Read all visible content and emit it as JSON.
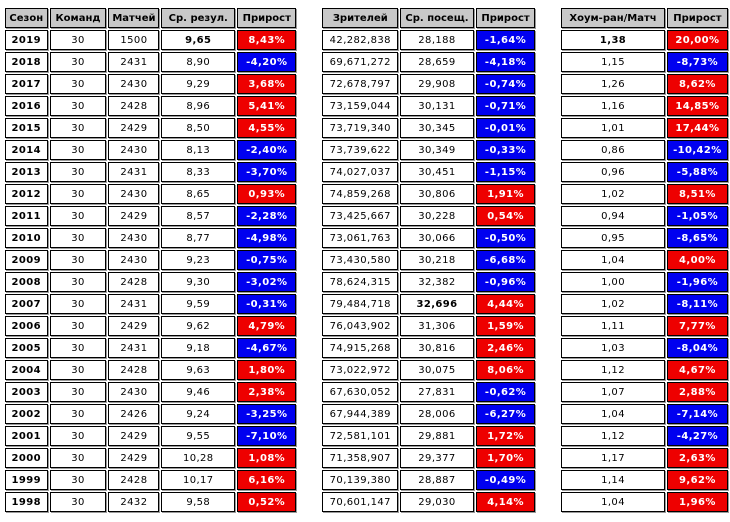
{
  "colors": {
    "up": "#ee0000",
    "down": "#0000f0",
    "highlight": "#dcf2dc",
    "header_bg": "#c8c8c8"
  },
  "tables": {
    "season": {
      "headers": [
        "Сезон",
        "Команд",
        "Матчей",
        "Ср. резул.",
        "Прирост"
      ],
      "rows": [
        {
          "year": "2019",
          "teams": "30",
          "games": "1500",
          "avg": "9,65",
          "avg_bold": true,
          "growth": "8,43%",
          "trend": "up"
        },
        {
          "year": "2018",
          "teams": "30",
          "games": "2431",
          "avg": "8,90",
          "growth": "-4,20%",
          "trend": "down"
        },
        {
          "year": "2017",
          "teams": "30",
          "games": "2430",
          "avg": "9,29",
          "growth": "3,68%",
          "trend": "up"
        },
        {
          "year": "2016",
          "teams": "30",
          "games": "2428",
          "avg": "8,96",
          "growth": "5,41%",
          "trend": "up"
        },
        {
          "year": "2015",
          "teams": "30",
          "games": "2429",
          "avg": "8,50",
          "growth": "4,55%",
          "trend": "up"
        },
        {
          "year": "2014",
          "teams": "30",
          "games": "2430",
          "avg": "8,13",
          "growth": "-2,40%",
          "trend": "down"
        },
        {
          "year": "2013",
          "teams": "30",
          "games": "2431",
          "avg": "8,33",
          "growth": "-3,70%",
          "trend": "down"
        },
        {
          "year": "2012",
          "teams": "30",
          "games": "2430",
          "avg": "8,65",
          "growth": "0,93%",
          "trend": "up"
        },
        {
          "year": "2011",
          "teams": "30",
          "games": "2429",
          "avg": "8,57",
          "growth": "-2,28%",
          "trend": "down"
        },
        {
          "year": "2010",
          "teams": "30",
          "games": "2430",
          "avg": "8,77",
          "growth": "-4,98%",
          "trend": "down"
        },
        {
          "year": "2009",
          "teams": "30",
          "games": "2430",
          "avg": "9,23",
          "growth": "-0,75%",
          "trend": "down"
        },
        {
          "year": "2008",
          "teams": "30",
          "games": "2428",
          "avg": "9,30",
          "growth": "-3,02%",
          "trend": "down"
        },
        {
          "year": "2007",
          "teams": "30",
          "games": "2431",
          "avg": "9,59",
          "growth": "-0,31%",
          "trend": "down"
        },
        {
          "year": "2006",
          "teams": "30",
          "games": "2429",
          "avg": "9,62",
          "growth": "4,79%",
          "trend": "up"
        },
        {
          "year": "2005",
          "teams": "30",
          "games": "2431",
          "avg": "9,18",
          "growth": "-4,67%",
          "trend": "down"
        },
        {
          "year": "2004",
          "teams": "30",
          "games": "2428",
          "avg": "9,63",
          "growth": "1,80%",
          "trend": "up"
        },
        {
          "year": "2003",
          "teams": "30",
          "games": "2430",
          "avg": "9,46",
          "growth": "2,38%",
          "trend": "up"
        },
        {
          "year": "2002",
          "teams": "30",
          "games": "2426",
          "avg": "9,24",
          "growth": "-3,25%",
          "trend": "down"
        },
        {
          "year": "2001",
          "teams": "30",
          "games": "2429",
          "avg": "9,55",
          "growth": "-7,10%",
          "trend": "down"
        },
        {
          "year": "2000",
          "teams": "30",
          "games": "2429",
          "avg": "10,28",
          "growth": "1,08%",
          "trend": "up"
        },
        {
          "year": "1999",
          "teams": "30",
          "games": "2428",
          "avg": "10,17",
          "growth": "6,16%",
          "trend": "up"
        },
        {
          "year": "1998",
          "teams": "30",
          "games": "2432",
          "avg": "9,58",
          "growth": "0,52%",
          "trend": "up"
        }
      ]
    },
    "attendance": {
      "headers": [
        "Зрителей",
        "Ср. посещ.",
        "Прирост"
      ],
      "rows": [
        {
          "spectators": "42,282,838",
          "avg": "28,188",
          "growth": "-1,64%",
          "trend": "down"
        },
        {
          "spectators": "69,671,272",
          "avg": "28,659",
          "growth": "-4,18%",
          "trend": "down"
        },
        {
          "spectators": "72,678,797",
          "avg": "29,908",
          "growth": "-0,74%",
          "trend": "down"
        },
        {
          "spectators": "73,159,044",
          "avg": "30,131",
          "growth": "-0,71%",
          "trend": "down"
        },
        {
          "spectators": "73,719,340",
          "avg": "30,345",
          "growth": "-0,01%",
          "trend": "down"
        },
        {
          "spectators": "73,739,622",
          "avg": "30,349",
          "growth": "-0,33%",
          "trend": "down"
        },
        {
          "spectators": "74,027,037",
          "avg": "30,451",
          "growth": "-1,15%",
          "trend": "down"
        },
        {
          "spectators": "74,859,268",
          "avg": "30,806",
          "growth": "1,91%",
          "trend": "up"
        },
        {
          "spectators": "73,425,667",
          "avg": "30,228",
          "growth": "0,54%",
          "trend": "up"
        },
        {
          "spectators": "73,061,763",
          "avg": "30,066",
          "growth": "-0,50%",
          "trend": "down"
        },
        {
          "spectators": "73,430,580",
          "avg": "30,218",
          "growth": "-6,68%",
          "trend": "down"
        },
        {
          "spectators": "78,624,315",
          "avg": "32,382",
          "growth": "-0,96%",
          "trend": "down"
        },
        {
          "spectators": "79,484,718",
          "avg": "32,696",
          "avg_green": true,
          "avg_bold": true,
          "growth": "4,44%",
          "trend": "up"
        },
        {
          "spectators": "76,043,902",
          "avg": "31,306",
          "growth": "1,59%",
          "trend": "up"
        },
        {
          "spectators": "74,915,268",
          "avg": "30,816",
          "avg_green": true,
          "growth": "2,46%",
          "trend": "up"
        },
        {
          "spectators": "73,022,972",
          "avg": "30,075",
          "avg_green": true,
          "growth": "8,06%",
          "trend": "up"
        },
        {
          "spectators": "67,630,052",
          "avg": "27,831",
          "growth": "-0,62%",
          "trend": "down"
        },
        {
          "spectators": "67,944,389",
          "avg": "28,006",
          "growth": "-6,27%",
          "trend": "down"
        },
        {
          "spectators": "72,581,101",
          "avg": "29,881",
          "avg_green": true,
          "growth": "1,72%",
          "trend": "up"
        },
        {
          "spectators": "71,358,907",
          "avg": "29,377",
          "avg_green": true,
          "growth": "1,70%",
          "trend": "up"
        },
        {
          "spectators": "70,139,380",
          "avg": "28,887",
          "growth": "-0,49%",
          "trend": "down"
        },
        {
          "spectators": "70,601,147",
          "avg": "29,030",
          "avg_green": true,
          "growth": "4,14%",
          "trend": "up"
        }
      ]
    },
    "homeruns": {
      "headers": [
        "Хоум-ран/Матч",
        "Прирост"
      ],
      "rows": [
        {
          "hr": "1,38",
          "hr_bold": true,
          "growth": "20,00%",
          "trend": "up"
        },
        {
          "hr": "1,15",
          "growth": "-8,73%",
          "trend": "down"
        },
        {
          "hr": "1,26",
          "growth": "8,62%",
          "trend": "up"
        },
        {
          "hr": "1,16",
          "growth": "14,85%",
          "trend": "up"
        },
        {
          "hr": "1,01",
          "growth": "17,44%",
          "trend": "up"
        },
        {
          "hr": "0,86",
          "growth": "-10,42%",
          "trend": "down"
        },
        {
          "hr": "0,96",
          "growth": "-5,88%",
          "trend": "down"
        },
        {
          "hr": "1,02",
          "growth": "8,51%",
          "trend": "up"
        },
        {
          "hr": "0,94",
          "growth": "-1,05%",
          "trend": "down"
        },
        {
          "hr": "0,95",
          "growth": "-8,65%",
          "trend": "down"
        },
        {
          "hr": "1,04",
          "growth": "4,00%",
          "trend": "up"
        },
        {
          "hr": "1,00",
          "growth": "-1,96%",
          "trend": "down"
        },
        {
          "hr": "1,02",
          "growth": "-8,11%",
          "trend": "down"
        },
        {
          "hr": "1,11",
          "growth": "7,77%",
          "trend": "up"
        },
        {
          "hr": "1,03",
          "growth": "-8,04%",
          "trend": "down"
        },
        {
          "hr": "1,12",
          "growth": "4,67%",
          "trend": "up"
        },
        {
          "hr": "1,07",
          "growth": "2,88%",
          "trend": "up"
        },
        {
          "hr": "1,04",
          "growth": "-7,14%",
          "trend": "down"
        },
        {
          "hr": "1,12",
          "growth": "-4,27%",
          "trend": "down"
        },
        {
          "hr": "1,17",
          "growth": "2,63%",
          "trend": "up"
        },
        {
          "hr": "1,14",
          "growth": "9,62%",
          "trend": "up"
        },
        {
          "hr": "1,04",
          "growth": "1,96%",
          "trend": "up"
        }
      ]
    }
  }
}
